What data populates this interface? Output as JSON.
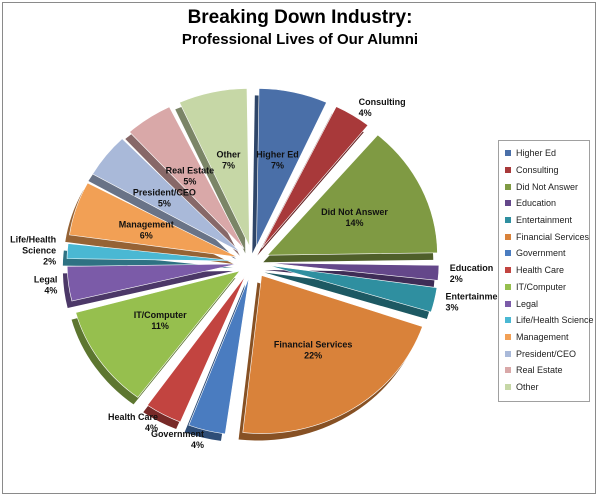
{
  "chart_data": {
    "type": "pie",
    "title": "Breaking Down Industry:",
    "subtitle": "Professional Lives of Our Alumni",
    "legend_position": "right",
    "slices": [
      {
        "label": "Higher Ed",
        "value": 7,
        "value_label": "7%",
        "color": "#4a6fa8"
      },
      {
        "label": "Consulting",
        "value": 4,
        "value_label": "4%",
        "color": "#a8393a"
      },
      {
        "label": "Did Not Answer",
        "value": 14,
        "value_label": "14%",
        "color": "#7f9a43"
      },
      {
        "label": "Education",
        "value": 2,
        "value_label": "2%",
        "color": "#64478a"
      },
      {
        "label": "Entertainment",
        "value": 3,
        "value_label": "3%",
        "color": "#2f8fa0"
      },
      {
        "label": "Financial Services",
        "value": 22,
        "value_label": "22%",
        "color": "#d9823a"
      },
      {
        "label": "Government",
        "value": 4,
        "value_label": "4%",
        "color": "#4a7cc0"
      },
      {
        "label": "Health Care",
        "value": 4,
        "value_label": "4%",
        "color": "#c24440"
      },
      {
        "label": "IT/Computer",
        "value": 11,
        "value_label": "11%",
        "color": "#96bf4e"
      },
      {
        "label": "Legal",
        "value": 4,
        "value_label": "4%",
        "color": "#7b5ba8"
      },
      {
        "label": "Life/Health Science",
        "value": 2,
        "value_label": "2%",
        "color": "#4ab8d3"
      },
      {
        "label": "Management",
        "value": 6,
        "value_label": "6%",
        "color": "#f2a055"
      },
      {
        "label": "President/CEO",
        "value": 5,
        "value_label": "5%",
        "color": "#a9b9d9"
      },
      {
        "label": "Real Estate",
        "value": 5,
        "value_label": "5%",
        "color": "#d9a8a8"
      },
      {
        "label": "Other",
        "value": 7,
        "value_label": "7%",
        "color": "#c6d7a6"
      }
    ]
  }
}
